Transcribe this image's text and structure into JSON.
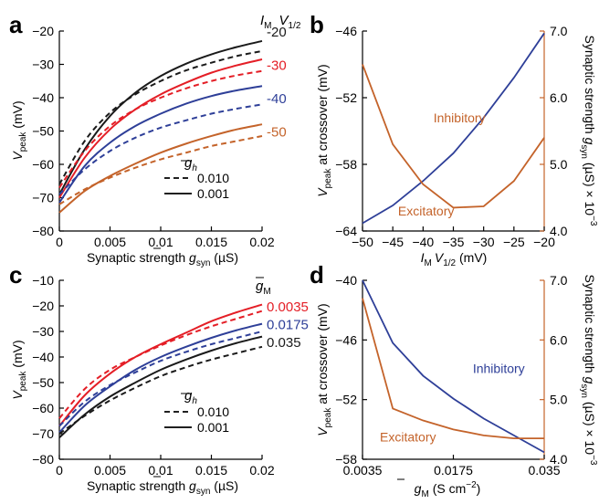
{
  "colors": {
    "black": "#1a1a1a",
    "red": "#e41e26",
    "blue": "#2e3f98",
    "orange": "#c4632a"
  },
  "chart_data": [
    {
      "panel_label": "a",
      "type": "line",
      "xlabel_main": "Synaptic strength",
      "xlabel_sym": "g",
      "xlabel_sub": "syn",
      "xlabel_unit": "(µS)",
      "ylabel_main": "V",
      "ylabel_sub": "peak",
      "ylabel_unit": "(mV)",
      "xlim": [
        0,
        0.02
      ],
      "ylim": [
        -80,
        -20
      ],
      "xticks": [
        0,
        0.005,
        0.01,
        0.015,
        0.02
      ],
      "xtick_labels": [
        "0",
        "0.005",
        "0.01",
        "0.015",
        "0.02"
      ],
      "yticks": [
        -80,
        -70,
        -60,
        -50,
        -40,
        -30,
        -20
      ],
      "ytick_labels": [
        "−80",
        "−70",
        "−60",
        "−50",
        "−40",
        "−30",
        "−20"
      ],
      "series_header": "I_M V_1/2",
      "series_header_parts": {
        "i": "I",
        "i_sub": "M",
        "v": "V",
        "v_sub": "1/2"
      },
      "x": [
        0,
        0.0025,
        0.005,
        0.0075,
        0.01,
        0.0125,
        0.015,
        0.0175,
        0.02
      ],
      "series": [
        {
          "name": "-20",
          "color_key": "black",
          "style": "solid",
          "values": [
            -69,
            -55.5,
            -45.5,
            -38.5,
            -33.5,
            -29.8,
            -27,
            -24.8,
            -23
          ]
        },
        {
          "name": "-20",
          "color_key": "black",
          "style": "dashed",
          "values": [
            -66,
            -53,
            -44.5,
            -39,
            -35,
            -31.8,
            -29.5,
            -27.5,
            -26
          ]
        },
        {
          "name": "-30",
          "color_key": "red",
          "style": "solid",
          "values": [
            -70,
            -58,
            -49.5,
            -43.5,
            -39,
            -35.5,
            -32.5,
            -30.3,
            -28.5
          ]
        },
        {
          "name": "-30",
          "color_key": "red",
          "style": "dashed",
          "values": [
            -67,
            -56,
            -48.5,
            -43.5,
            -40,
            -37.2,
            -35,
            -33.3,
            -32
          ]
        },
        {
          "name": "-40",
          "color_key": "blue",
          "style": "solid",
          "values": [
            -71.5,
            -60.5,
            -53.5,
            -48.5,
            -44.8,
            -41.8,
            -39.5,
            -37.8,
            -36.5
          ]
        },
        {
          "name": "-40",
          "color_key": "blue",
          "style": "dashed",
          "values": [
            -69,
            -61.5,
            -56,
            -52,
            -49,
            -46.8,
            -44.8,
            -43.3,
            -42
          ]
        },
        {
          "name": "-50",
          "color_key": "orange",
          "style": "solid",
          "values": [
            -74.5,
            -68,
            -63.5,
            -59.8,
            -56.5,
            -53.8,
            -51.5,
            -49.5,
            -48
          ]
        },
        {
          "name": "-50",
          "color_key": "orange",
          "style": "dashed",
          "values": [
            -72,
            -67.5,
            -64,
            -61,
            -58.5,
            -56.5,
            -54.5,
            -53,
            -51.5
          ]
        }
      ],
      "series_labels": [
        {
          "text": "-20",
          "color_key": "black",
          "y": -20
        },
        {
          "text": "-30",
          "color_key": "red",
          "y": -30
        },
        {
          "text": "-40",
          "color_key": "blue",
          "y": -40
        },
        {
          "text": "-50",
          "color_key": "orange",
          "y": -50
        }
      ],
      "legend": {
        "title_sym": "g",
        "title_sub": "h",
        "entries": [
          {
            "label": "0.010",
            "style": "dashed"
          },
          {
            "label": "0.001",
            "style": "solid"
          }
        ]
      }
    },
    {
      "panel_label": "b",
      "type": "line",
      "xlabel_i": "I",
      "xlabel_i_sub": "M",
      "xlabel_v": "V",
      "xlabel_v_sub": "1/2",
      "xlabel_unit": "(mV)",
      "ylabel_left_main": "V",
      "ylabel_left_sub": "peak",
      "ylabel_left_rest": "at crossover (mV)",
      "ylabel_right_text": "Synaptic strength",
      "ylabel_right_sym": "g",
      "ylabel_right_sub": "syn",
      "ylabel_right_unit": "(µS) × 10",
      "ylabel_right_exp": "−3",
      "xlim": [
        -50,
        -20
      ],
      "ylim_left": [
        -64,
        -46
      ],
      "ylim_right": [
        4.0,
        7.0
      ],
      "xticks": [
        -50,
        -45,
        -40,
        -35,
        -30,
        -25,
        -20
      ],
      "xtick_labels": [
        "−50",
        "−45",
        "−40",
        "−35",
        "−30",
        "−25",
        "−20"
      ],
      "yticks_left": [
        -64,
        -58,
        -52,
        -46
      ],
      "ytick_left_labels": [
        "−64",
        "−58",
        "−52",
        "−46"
      ],
      "yticks_right": [
        4.0,
        5.0,
        6.0,
        7.0
      ],
      "ytick_right_labels": [
        "4.0",
        "5.0",
        "6.0",
        "7.0"
      ],
      "x": [
        -50,
        -45,
        -40,
        -35,
        -30,
        -25,
        -20
      ],
      "series": [
        {
          "name": "Inhibitory",
          "color_key": "blue",
          "axis": "left",
          "values": [
            -63.3,
            -61.7,
            -59.5,
            -57,
            -53.8,
            -50.2,
            -46.2
          ]
        },
        {
          "name": "Excitatory",
          "color_key": "orange",
          "axis": "right",
          "values": [
            6.5,
            5.3,
            4.7,
            4.35,
            4.37,
            4.75,
            5.4
          ]
        }
      ],
      "annotations": [
        {
          "text": "Inhibitory",
          "color_key": "orange",
          "x": -34,
          "y": -54.2
        },
        {
          "text": "Excitatory",
          "color_key": "orange",
          "x": -39.5,
          "y": -62.6
        }
      ]
    },
    {
      "panel_label": "c",
      "type": "line",
      "xlabel_main": "Synaptic strength",
      "xlabel_sym": "g",
      "xlabel_sub": "syn",
      "xlabel_unit": "(µS)",
      "ylabel_main": "V",
      "ylabel_sub": "peak",
      "ylabel_unit": "(mV)",
      "xlim": [
        0,
        0.02
      ],
      "ylim": [
        -80,
        -10
      ],
      "xticks": [
        0,
        0.005,
        0.01,
        0.015,
        0.02
      ],
      "xtick_labels": [
        "0",
        "0.005",
        "0.01",
        "0.015",
        "0.02"
      ],
      "yticks": [
        -80,
        -70,
        -60,
        -50,
        -40,
        -30,
        -20,
        -10
      ],
      "ytick_labels": [
        "−80",
        "−70",
        "−60",
        "−50",
        "−40",
        "−30",
        "−20",
        "−10"
      ],
      "series_header_sym": "g",
      "series_header_sub": "M",
      "x": [
        0,
        0.0025,
        0.005,
        0.0075,
        0.01,
        0.0125,
        0.015,
        0.0175,
        0.02
      ],
      "series": [
        {
          "name": "0.0035",
          "color_key": "red",
          "style": "solid",
          "values": [
            -67,
            -55,
            -46.5,
            -40,
            -35,
            -30.5,
            -26,
            -22.5,
            -19.5
          ]
        },
        {
          "name": "0.0035",
          "color_key": "red",
          "style": "dashed",
          "values": [
            -64,
            -52.5,
            -45,
            -40,
            -35.5,
            -31.5,
            -28,
            -25,
            -22
          ]
        },
        {
          "name": "0.0175",
          "color_key": "blue",
          "style": "solid",
          "values": [
            -69.5,
            -59,
            -51.5,
            -45,
            -40,
            -36,
            -32.5,
            -29.5,
            -27
          ]
        },
        {
          "name": "0.0175",
          "color_key": "blue",
          "style": "dashed",
          "values": [
            -67,
            -57.5,
            -51,
            -46,
            -41.5,
            -38,
            -35,
            -32.5,
            -30
          ]
        },
        {
          "name": "0.035",
          "color_key": "black",
          "style": "solid",
          "values": [
            -71.5,
            -62.5,
            -55.5,
            -50,
            -45,
            -41,
            -37.5,
            -34.5,
            -32
          ]
        },
        {
          "name": "0.035",
          "color_key": "black",
          "style": "dashed",
          "values": [
            -70,
            -63,
            -57,
            -52,
            -47.5,
            -44,
            -41,
            -38.5,
            -36
          ]
        }
      ],
      "series_labels": [
        {
          "text": "0.0035",
          "color_key": "red",
          "y": -20
        },
        {
          "text": "0.0175",
          "color_key": "blue",
          "y": -27
        },
        {
          "text": "0.035",
          "color_key": "black",
          "y": -34
        }
      ],
      "legend": {
        "title_sym": "g",
        "title_sub": "h",
        "entries": [
          {
            "label": "0.010",
            "style": "dashed"
          },
          {
            "label": "0.001",
            "style": "solid"
          }
        ]
      }
    },
    {
      "panel_label": "d",
      "type": "line",
      "xlabel_sym": "g",
      "xlabel_sub": "M",
      "xlabel_unit": "(S cm",
      "xlabel_exp": "−2",
      "xlabel_close": ")",
      "ylabel_left_main": "V",
      "ylabel_left_sub": "peak",
      "ylabel_left_rest": "at crossover (mV)",
      "ylabel_right_text": "Synaptic strength",
      "ylabel_right_sym": "g",
      "ylabel_right_sub": "syn",
      "ylabel_right_unit": "(µS) × 10",
      "ylabel_right_exp": "−3",
      "xlim": [
        0,
        6
      ],
      "ylim_left": [
        -58,
        -40
      ],
      "ylim_right": [
        4.0,
        7.0
      ],
      "xticks": [
        0,
        3,
        6
      ],
      "xtick_labels": [
        "0.0035",
        "0.0175",
        "0.035"
      ],
      "yticks_left": [
        -58,
        -52,
        -46,
        -40
      ],
      "ytick_left_labels": [
        "−58",
        "−52",
        "−46",
        "−40"
      ],
      "yticks_right": [
        4.0,
        5.0,
        6.0,
        7.0
      ],
      "ytick_right_labels": [
        "4.0",
        "5.0",
        "6.0",
        "7.0"
      ],
      "x": [
        0,
        1.5,
        3,
        4.5,
        6
      ],
      "series": [
        {
          "name": "Inhibitory",
          "color_key": "blue",
          "axis": "left",
          "values": [
            -40,
            -49.2,
            -51.9,
            -55.6,
            -57.3
          ]
        },
        {
          "name": "Excitatory",
          "color_key": "orange",
          "axis": "right",
          "values": [
            6.7,
            4.85,
            4.5,
            4.35,
            4.35
          ]
        }
      ],
      "x_extra": [
        0,
        1,
        2,
        3,
        4,
        5,
        6
      ],
      "series_extra": [
        {
          "name": "Inhibitory",
          "values": [
            -40,
            -46.3,
            -49.6,
            -51.9,
            -53.9,
            -55.6,
            -57.3
          ]
        },
        {
          "name": "Excitatory",
          "values": [
            6.7,
            4.85,
            4.65,
            4.5,
            4.4,
            4.35,
            4.35
          ]
        }
      ],
      "annotations": [
        {
          "text": "Inhibitory",
          "color_key": "blue",
          "x": 4.5,
          "y": -49.3
        },
        {
          "text": "Excitatory",
          "color_key": "orange",
          "x": 1.5,
          "y": -56.2
        }
      ]
    }
  ]
}
